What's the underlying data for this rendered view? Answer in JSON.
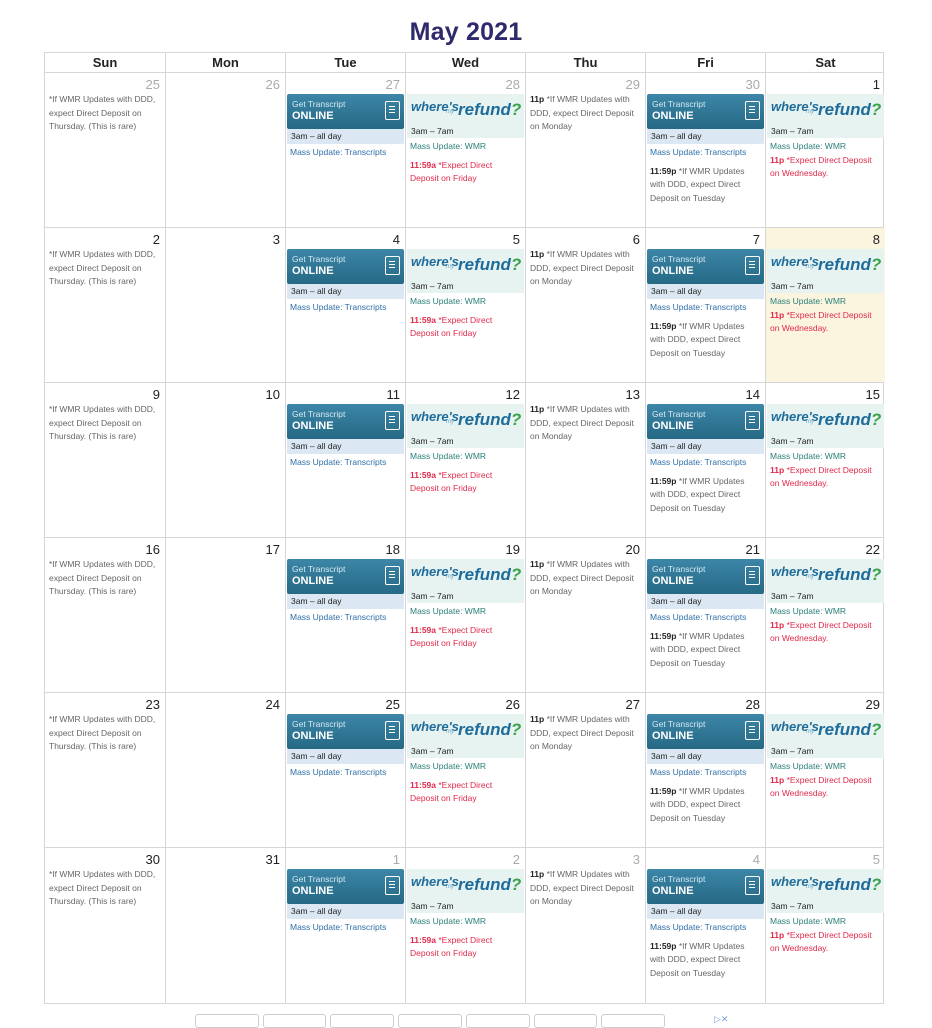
{
  "title": "May 2021",
  "weekdays": [
    "Sun",
    "Mon",
    "Tue",
    "Wed",
    "Thu",
    "Fri",
    "Sat"
  ],
  "texts": {
    "sun_note": "*If WMR Updates with DDD, expect Direct Deposit on Thursday. (This is rare)",
    "gt_line1": "Get Transcript",
    "gt_line2": "ONLINE",
    "gt_time": "3am – all day",
    "mass_transcripts": "Mass Update: Transcripts",
    "wmr_where": "where's",
    "wmr_my": "my",
    "wmr_refund": "refund",
    "wmr_q": "?",
    "wmr_time": "3am – 7am",
    "mass_wmr": "Mass Update: WMR",
    "wed_time": "11:59a",
    "wed_note": "*Expect Direct Deposit on Friday",
    "thu_time": "11p",
    "thu_note": "*If WMR Updates with DDD, expect Direct Deposit on Monday",
    "fri_time": "11:59p",
    "fri_note": "*If WMR Updates with DDD, expect Direct Deposit on Tuesday",
    "sat_time": "11p",
    "sat_note": "*Expect Direct Deposit on Wednesday."
  },
  "weeks": [
    [
      {
        "d": "25",
        "o": true
      },
      {
        "d": "26",
        "o": true
      },
      {
        "d": "27",
        "o": true
      },
      {
        "d": "28",
        "o": true
      },
      {
        "d": "29",
        "o": true
      },
      {
        "d": "30",
        "o": true
      },
      {
        "d": "1",
        "o": false
      }
    ],
    [
      {
        "d": "2"
      },
      {
        "d": "3"
      },
      {
        "d": "4"
      },
      {
        "d": "5"
      },
      {
        "d": "6"
      },
      {
        "d": "7"
      },
      {
        "d": "8",
        "today": true
      }
    ],
    [
      {
        "d": "9"
      },
      {
        "d": "10"
      },
      {
        "d": "11"
      },
      {
        "d": "12"
      },
      {
        "d": "13"
      },
      {
        "d": "14"
      },
      {
        "d": "15"
      }
    ],
    [
      {
        "d": "16"
      },
      {
        "d": "17"
      },
      {
        "d": "18"
      },
      {
        "d": "19"
      },
      {
        "d": "20"
      },
      {
        "d": "21"
      },
      {
        "d": "22"
      }
    ],
    [
      {
        "d": "23"
      },
      {
        "d": "24"
      },
      {
        "d": "25"
      },
      {
        "d": "26"
      },
      {
        "d": "27"
      },
      {
        "d": "28"
      },
      {
        "d": "29"
      }
    ],
    [
      {
        "d": "30"
      },
      {
        "d": "31"
      },
      {
        "d": "1",
        "o": true
      },
      {
        "d": "2",
        "o": true
      },
      {
        "d": "3",
        "o": true
      },
      {
        "d": "4",
        "o": true
      },
      {
        "d": "5",
        "o": true
      }
    ]
  ],
  "ad_close": "▷✕"
}
